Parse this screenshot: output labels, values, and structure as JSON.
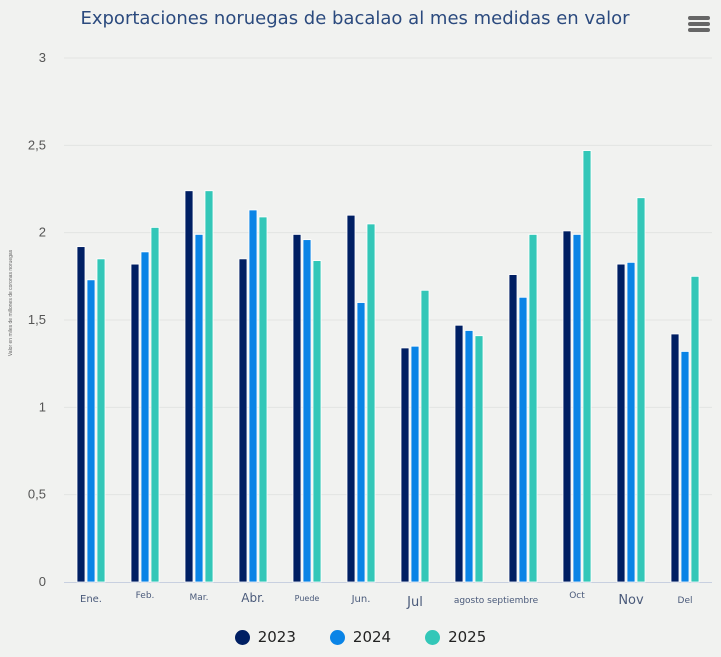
{
  "chart_data": {
    "type": "bar",
    "title": "Exportaciones noruegas de bacalao al mes medidas en valor",
    "xlabel": "",
    "ylabel": "Valor en miles de millones de coronas noruegas",
    "ylim": [
      0,
      3
    ],
    "yticks": [
      0,
      0.5,
      1,
      1.5,
      2,
      2.5,
      3
    ],
    "ytick_labels": [
      "0",
      "0,5",
      "1",
      "1,5",
      "2",
      "2,5",
      "3"
    ],
    "grid": true,
    "legend_position": "bottom-center",
    "categories": [
      "Ene.",
      "Feb.",
      "Mar.",
      "Abr.",
      "Puede",
      "Jun.",
      "Jul",
      "agosto",
      "septiembre",
      "Oct",
      "Nov",
      "Del"
    ],
    "category_label_text": [
      "Ene.",
      "Feb.",
      "Mar.",
      "Abr.",
      "Puede",
      "Jun.",
      "Jul",
      "agosto septiembre",
      "",
      "Oct",
      "Nov",
      "Del"
    ],
    "series": [
      {
        "name": "2023",
        "color": "#001f63",
        "values": [
          1.92,
          1.82,
          2.24,
          1.85,
          1.99,
          2.1,
          1.34,
          1.47,
          1.76,
          2.01,
          1.82,
          1.42
        ]
      },
      {
        "name": "2024",
        "color": "#0a84e6",
        "values": [
          1.73,
          1.89,
          1.99,
          2.13,
          1.96,
          1.6,
          1.35,
          1.44,
          1.63,
          1.99,
          1.83,
          1.32
        ]
      },
      {
        "name": "2025",
        "color": "#33c7b8",
        "values": [
          1.85,
          2.03,
          2.24,
          2.09,
          1.84,
          2.05,
          1.67,
          1.41,
          1.99,
          2.47,
          2.2,
          1.75
        ]
      }
    ]
  },
  "ui": {
    "menu_icon": "hamburger-menu-icon"
  }
}
